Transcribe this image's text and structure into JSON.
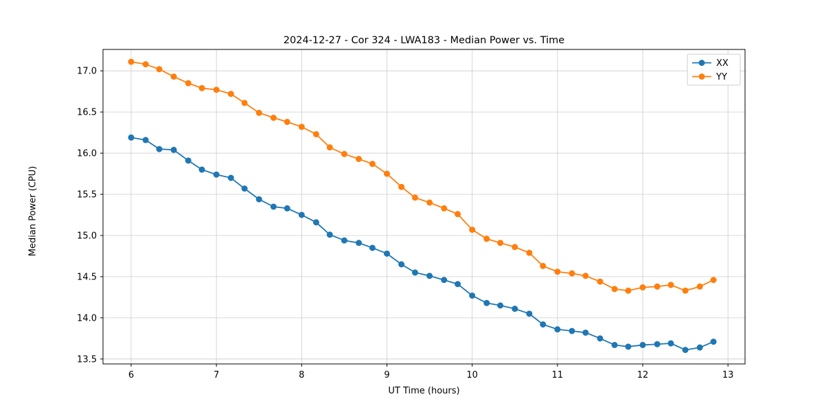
{
  "chart_data": {
    "type": "line",
    "title": "2024-12-27 - Cor 324 - LWA183 - Median Power vs. Time",
    "xlabel": "UT Time (hours)",
    "ylabel": "Median Power (CPU)",
    "xlim": [
      5.67,
      13.2
    ],
    "ylim": [
      13.44,
      17.26
    ],
    "xticks": [
      6,
      7,
      8,
      9,
      10,
      11,
      12,
      13
    ],
    "xtick_labels": [
      "6",
      "7",
      "8",
      "9",
      "10",
      "11",
      "12",
      "13"
    ],
    "yticks": [
      13.5,
      14.0,
      14.5,
      15.0,
      15.5,
      16.0,
      16.5,
      17.0
    ],
    "ytick_labels": [
      "13.5",
      "14.0",
      "14.5",
      "15.0",
      "15.5",
      "16.0",
      "16.5",
      "17.0"
    ],
    "grid": true,
    "legend_position": "upper right",
    "x": [
      6.0,
      6.17,
      6.33,
      6.5,
      6.67,
      6.83,
      7.0,
      7.17,
      7.33,
      7.5,
      7.67,
      7.83,
      8.0,
      8.17,
      8.33,
      8.5,
      8.67,
      8.83,
      9.0,
      9.17,
      9.33,
      9.5,
      9.67,
      9.83,
      10.0,
      10.17,
      10.33,
      10.5,
      10.67,
      10.83,
      11.0,
      11.17,
      11.33,
      11.5,
      11.67,
      11.83,
      12.0,
      12.17,
      12.33,
      12.5,
      12.67,
      12.83
    ],
    "series": [
      {
        "name": "XX",
        "color": "#1f77b4",
        "values": [
          16.19,
          16.16,
          16.05,
          16.04,
          15.91,
          15.8,
          15.74,
          15.7,
          15.57,
          15.44,
          15.35,
          15.33,
          15.25,
          15.16,
          15.01,
          14.94,
          14.91,
          14.85,
          14.78,
          14.65,
          14.55,
          14.51,
          14.46,
          14.41,
          14.27,
          14.18,
          14.15,
          14.11,
          14.05,
          13.92,
          13.86,
          13.84,
          13.82,
          13.75,
          13.67,
          13.65,
          13.67,
          13.68,
          13.69,
          13.61,
          13.64,
          13.71
        ]
      },
      {
        "name": "YY",
        "color": "#ff7f0e",
        "values": [
          17.11,
          17.08,
          17.02,
          16.93,
          16.85,
          16.79,
          16.77,
          16.72,
          16.61,
          16.49,
          16.43,
          16.38,
          16.32,
          16.23,
          16.07,
          15.99,
          15.93,
          15.87,
          15.75,
          15.59,
          15.46,
          15.4,
          15.33,
          15.26,
          15.07,
          14.96,
          14.91,
          14.86,
          14.79,
          14.63,
          14.56,
          14.54,
          14.51,
          14.44,
          14.35,
          14.33,
          14.37,
          14.38,
          14.4,
          14.33,
          14.38,
          14.46
        ]
      }
    ],
    "colors": {
      "frame": "#000000",
      "grid": "#cccccc",
      "legend_border": "#cccccc",
      "background": "#ffffff"
    }
  }
}
